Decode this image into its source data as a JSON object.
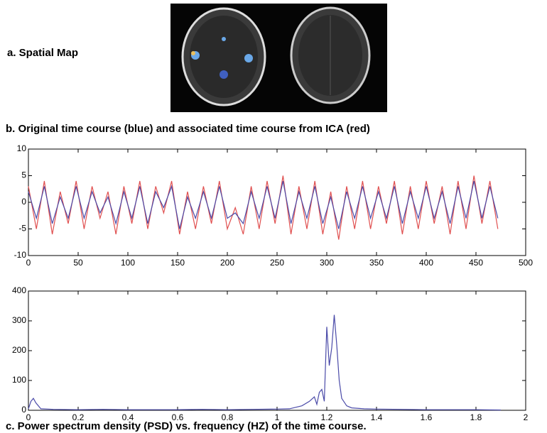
{
  "panel_a": {
    "label": "a. Spatial Map"
  },
  "chart_data": [
    {
      "type": "line",
      "title": "b. Original time course (blue) and associated time course from ICA (red)",
      "x": [
        0,
        8,
        16,
        24,
        32,
        40,
        48,
        56,
        64,
        72,
        80,
        88,
        96,
        104,
        112,
        120,
        128,
        136,
        144,
        152,
        160,
        168,
        176,
        184,
        192,
        200,
        208,
        216,
        224,
        232,
        240,
        248,
        256,
        264,
        272,
        280,
        288,
        296,
        304,
        312,
        320,
        328,
        336,
        344,
        352,
        360,
        368,
        376,
        384,
        392,
        400,
        408,
        416,
        424,
        432,
        440,
        448,
        456,
        464,
        472
      ],
      "series": [
        {
          "color": "#e05050",
          "values": [
            3,
            -5,
            4,
            -6,
            2,
            -4,
            4,
            -5,
            3,
            -3,
            2,
            -6,
            3,
            -4,
            4,
            -5,
            3,
            -2,
            4,
            -6,
            2,
            -5,
            3,
            -4,
            4,
            -5,
            -1,
            -6,
            3,
            -5,
            4,
            -4,
            5,
            -6,
            3,
            -5,
            4,
            -6,
            2,
            -7,
            3,
            -5,
            4,
            -5,
            3,
            -4,
            4,
            -6,
            3,
            -5,
            4,
            -4,
            3,
            -6,
            4,
            -5,
            5,
            -4,
            4,
            -5
          ]
        },
        {
          "color": "#4a4aa8",
          "values": [
            2,
            -3,
            3,
            -4,
            1,
            -3,
            3,
            -3,
            2,
            -2,
            1,
            -4,
            2,
            -3,
            3,
            -4,
            2,
            -1,
            3,
            -5,
            1,
            -3,
            2,
            -3,
            3,
            -3,
            -2,
            -4,
            2,
            -3,
            3,
            -3,
            4,
            -4,
            2,
            -3,
            3,
            -4,
            1,
            -5,
            2,
            -3,
            3,
            -3,
            2,
            -3,
            3,
            -4,
            2,
            -3,
            3,
            -3,
            2,
            -4,
            3,
            -3,
            4,
            -3,
            3,
            -3
          ]
        }
      ],
      "xlim": [
        0,
        500
      ],
      "xticks": [
        0,
        50,
        100,
        150,
        200,
        250,
        300,
        350,
        400,
        450,
        500
      ],
      "ylim": [
        -10,
        10
      ],
      "yticks": [
        -10,
        -5,
        0,
        5,
        10
      ]
    },
    {
      "type": "line",
      "title": "c. Power spectrum density (PSD) vs. frequency (HZ) of the time course.",
      "x": [
        0,
        0.01,
        0.02,
        0.03,
        0.05,
        0.1,
        0.2,
        0.3,
        0.4,
        0.5,
        0.6,
        0.7,
        0.8,
        0.9,
        1.0,
        1.05,
        1.1,
        1.13,
        1.15,
        1.16,
        1.17,
        1.18,
        1.19,
        1.2,
        1.21,
        1.22,
        1.23,
        1.24,
        1.25,
        1.26,
        1.28,
        1.3,
        1.35,
        1.4,
        1.5,
        1.6,
        1.7,
        1.8,
        1.9
      ],
      "series": [
        {
          "color": "#4a4aa8",
          "values": [
            5,
            30,
            40,
            25,
            5,
            3,
            2,
            3,
            2,
            2,
            2,
            3,
            2,
            3,
            4,
            5,
            15,
            30,
            45,
            20,
            60,
            70,
            30,
            280,
            150,
            210,
            320,
            220,
            100,
            40,
            15,
            8,
            5,
            4,
            3,
            2,
            2,
            2,
            1
          ]
        }
      ],
      "xlim": [
        0,
        2
      ],
      "xticks": [
        0,
        0.2,
        0.4,
        0.6,
        0.8,
        1,
        1.2,
        1.4,
        1.6,
        1.8,
        2
      ],
      "ylim": [
        0,
        400
      ],
      "yticks": [
        0,
        100,
        200,
        300,
        400
      ]
    }
  ]
}
